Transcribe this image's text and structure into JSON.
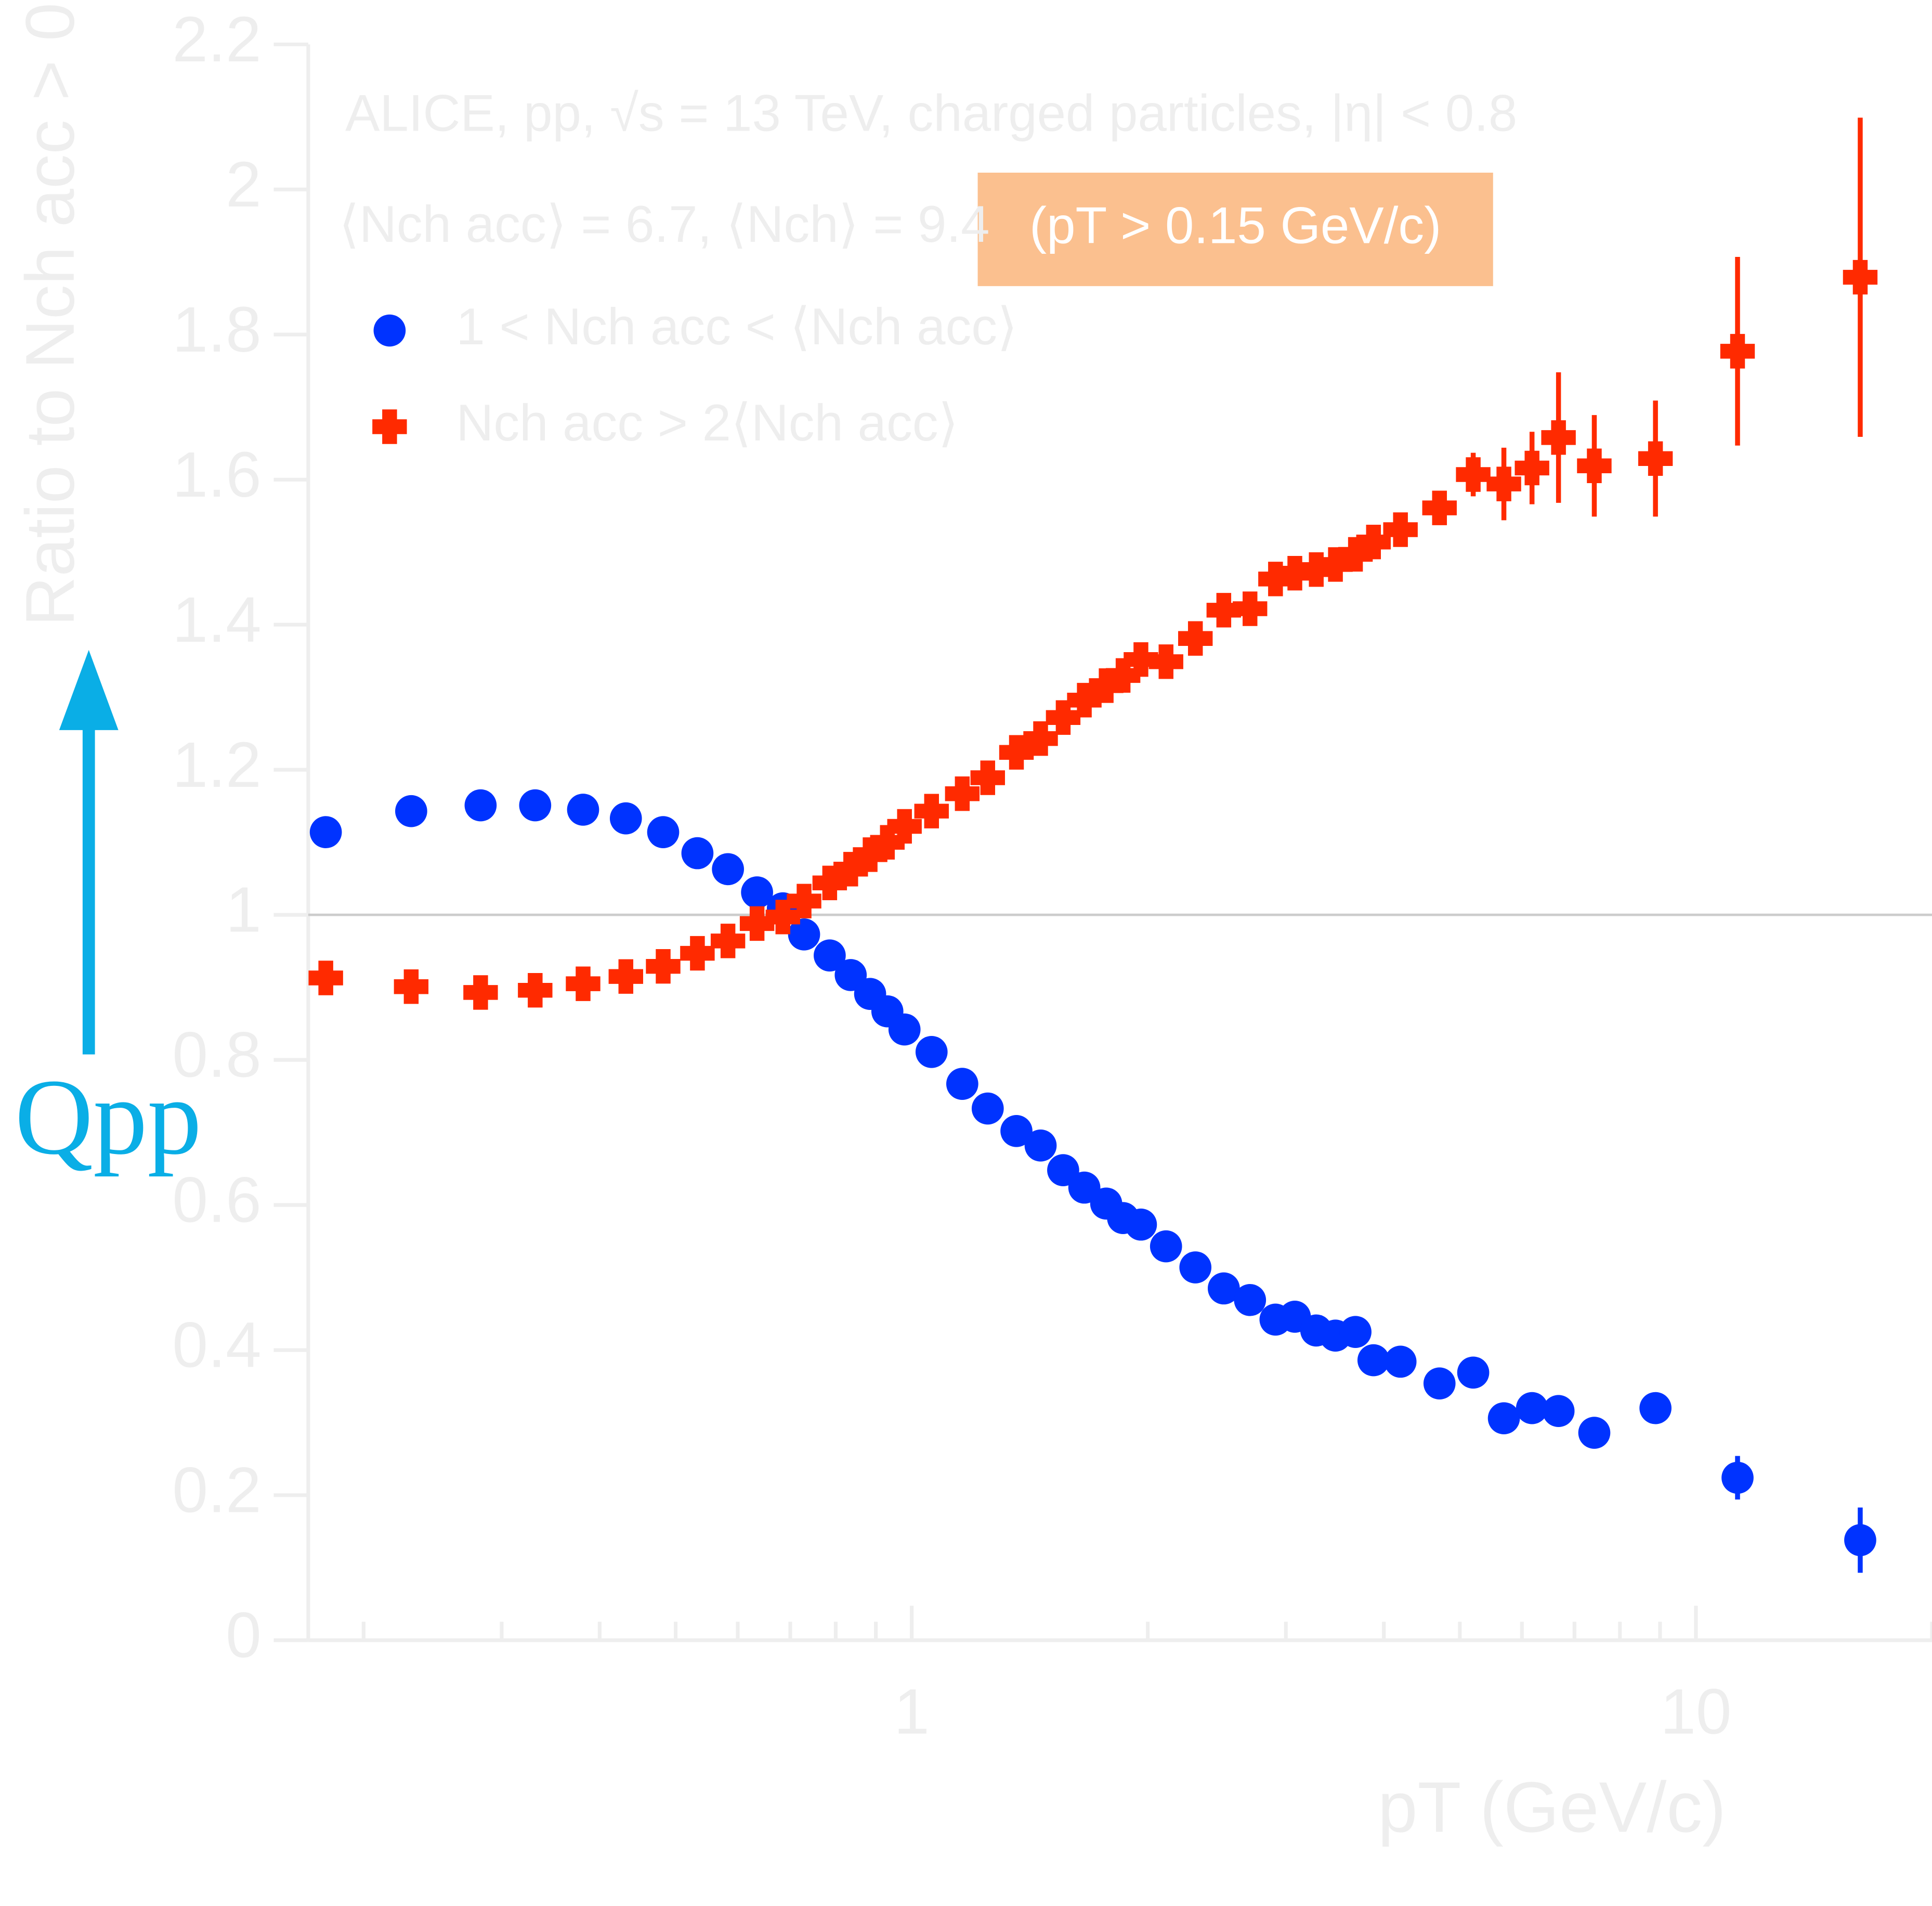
{
  "chart_data": {
    "type": "scatter",
    "title": "ALICE, pp, √s = 13 TeV, charged particles, |η| < 0.8",
    "subtitle": "⟨Nch acc⟩ = 6.7, ⟨Nch⟩ = 9.4",
    "highlight": "(pT > 0.15 GeV/c)",
    "x_label": "pT (GeV/c)",
    "y_label": "Ratio to Nch acc > 0",
    "annotation": "Qpp",
    "x_log": true,
    "xlim": [
      0.17,
      20
    ],
    "xticks": [
      1,
      10
    ],
    "xminorticks": [
      0.2,
      0.3,
      0.4,
      0.5,
      0.6,
      0.7,
      0.8,
      0.9,
      2,
      3,
      4,
      5,
      6,
      7,
      8,
      9,
      20
    ],
    "ylim": [
      0,
      2.2
    ],
    "yticks": [
      0,
      0.2,
      0.4,
      0.6,
      0.8,
      1,
      1.2,
      1.4,
      1.6,
      1.8,
      2,
      2.2
    ],
    "reference_line": 1,
    "series": [
      {
        "name": "1 < Nch acc < ⟨Nch acc⟩",
        "color": "#0033ff",
        "marker": "circle",
        "x": [
          0.179,
          0.23,
          0.282,
          0.331,
          0.381,
          0.432,
          0.482,
          0.533,
          0.583,
          0.635,
          0.685,
          0.729,
          0.786,
          0.836,
          0.885,
          0.931,
          0.979,
          1.06,
          1.16,
          1.25,
          1.36,
          1.46,
          1.56,
          1.66,
          1.77,
          1.86,
          1.96,
          2.11,
          2.3,
          2.5,
          2.7,
          2.91,
          3.08,
          3.28,
          3.47,
          3.68,
          3.88,
          4.2,
          4.71,
          5.2,
          5.69,
          6.18,
          6.68,
          7.42,
          8.88,
          11.3,
          16.2
        ],
        "values": [
          1.114,
          1.143,
          1.151,
          1.151,
          1.145,
          1.133,
          1.114,
          1.085,
          1.063,
          1.031,
          1.009,
          0.973,
          0.944,
          0.917,
          0.891,
          0.867,
          0.842,
          0.811,
          0.767,
          0.733,
          0.702,
          0.682,
          0.648,
          0.624,
          0.602,
          0.582,
          0.573,
          0.543,
          0.514,
          0.485,
          0.469,
          0.442,
          0.446,
          0.427,
          0.42,
          0.425,
          0.386,
          0.384,
          0.354,
          0.369,
          0.306,
          0.32,
          0.316,
          0.286,
          0.32,
          0.224,
          0.138
        ],
        "errors": [
          0.003,
          0.003,
          0.003,
          0.003,
          0.003,
          0.003,
          0.003,
          0.003,
          0.003,
          0.003,
          0.003,
          0.003,
          0.003,
          0.003,
          0.003,
          0.003,
          0.003,
          0.003,
          0.003,
          0.003,
          0.003,
          0.003,
          0.003,
          0.003,
          0.003,
          0.003,
          0.003,
          0.003,
          0.003,
          0.003,
          0.003,
          0.003,
          0.003,
          0.003,
          0.003,
          0.003,
          0.005,
          0.005,
          0.005,
          0.006,
          0.008,
          0.008,
          0.01,
          0.012,
          0.015,
          0.03,
          0.045
        ]
      },
      {
        "name": "Nch acc > 2⟨Nch acc⟩",
        "color": "#ff2a00",
        "marker": "cross",
        "x": [
          0.179,
          0.23,
          0.282,
          0.331,
          0.381,
          0.432,
          0.482,
          0.533,
          0.583,
          0.635,
          0.685,
          0.729,
          0.786,
          0.836,
          0.885,
          0.931,
          0.979,
          1.06,
          1.16,
          1.25,
          1.36,
          1.46,
          1.56,
          1.66,
          1.77,
          1.86,
          1.96,
          2.11,
          2.3,
          2.5,
          2.7,
          2.91,
          3.08,
          3.28,
          3.47,
          3.68,
          3.88,
          4.2,
          4.71,
          5.2,
          5.69,
          6.18,
          6.68,
          7.42,
          8.88,
          11.3,
          16.2
        ],
        "values": [
          0.913,
          0.901,
          0.893,
          0.896,
          0.905,
          0.915,
          0.929,
          0.947,
          0.964,
          0.988,
          0.997,
          1.019,
          1.044,
          1.063,
          1.083,
          1.1,
          1.122,
          1.143,
          1.167,
          1.189,
          1.224,
          1.243,
          1.272,
          1.296,
          1.316,
          1.33,
          1.352,
          1.349,
          1.381,
          1.42,
          1.422,
          1.463,
          1.471,
          1.476,
          1.483,
          1.497,
          1.514,
          1.531,
          1.561,
          1.607,
          1.594,
          1.616,
          1.658,
          1.619,
          1.629,
          1.777,
          1.879
        ],
        "errors": [
          0.003,
          0.003,
          0.003,
          0.003,
          0.003,
          0.003,
          0.003,
          0.003,
          0.003,
          0.003,
          0.003,
          0.003,
          0.003,
          0.003,
          0.003,
          0.003,
          0.003,
          0.003,
          0.003,
          0.003,
          0.003,
          0.003,
          0.003,
          0.003,
          0.003,
          0.003,
          0.003,
          0.003,
          0.003,
          0.003,
          0.003,
          0.003,
          0.003,
          0.003,
          0.003,
          0.005,
          0.005,
          0.008,
          0.012,
          0.03,
          0.05,
          0.05,
          0.09,
          0.07,
          0.08,
          0.13,
          0.22
        ]
      }
    ]
  }
}
